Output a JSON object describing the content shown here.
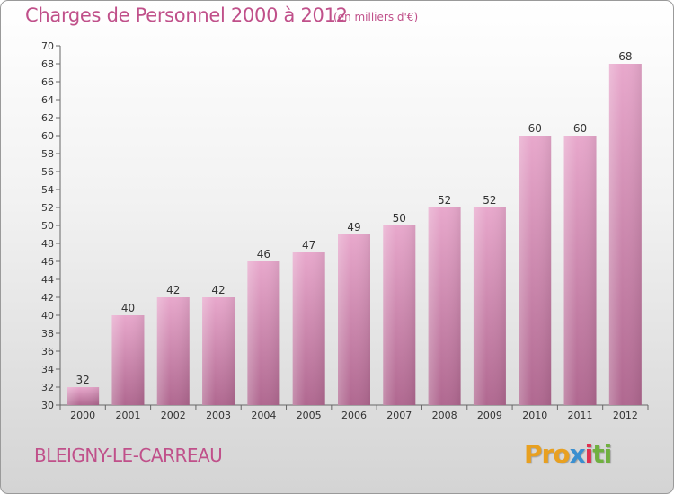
{
  "header": {
    "title": "Charges de Personnel 2000 à 2012",
    "subtitle": "(en milliers d'€)"
  },
  "footer": {
    "commune": "BLEIGNY-LE-CARREAU",
    "logo_parts": [
      "Pro",
      "x",
      "i",
      "ti"
    ]
  },
  "colors": {
    "accent": "#c0508a",
    "bar_top": "#e8a8cc",
    "bar_bottom": "#b06890",
    "logo": [
      "#e8a020",
      "#3a8fd0",
      "#e03050",
      "#70b040"
    ]
  },
  "chart_data": {
    "type": "bar",
    "title": "Charges de Personnel 2000 à 2012",
    "subtitle": "(en milliers d'€)",
    "xlabel": "",
    "ylabel": "",
    "categories": [
      "2000",
      "2001",
      "2002",
      "2003",
      "2004",
      "2005",
      "2006",
      "2007",
      "2008",
      "2009",
      "2010",
      "2011",
      "2012"
    ],
    "values": [
      32,
      40,
      42,
      42,
      46,
      47,
      49,
      50,
      52,
      52,
      60,
      60,
      68
    ],
    "ylim": [
      30,
      70
    ],
    "ytick_step": 2,
    "grid": false,
    "legend": "none"
  }
}
